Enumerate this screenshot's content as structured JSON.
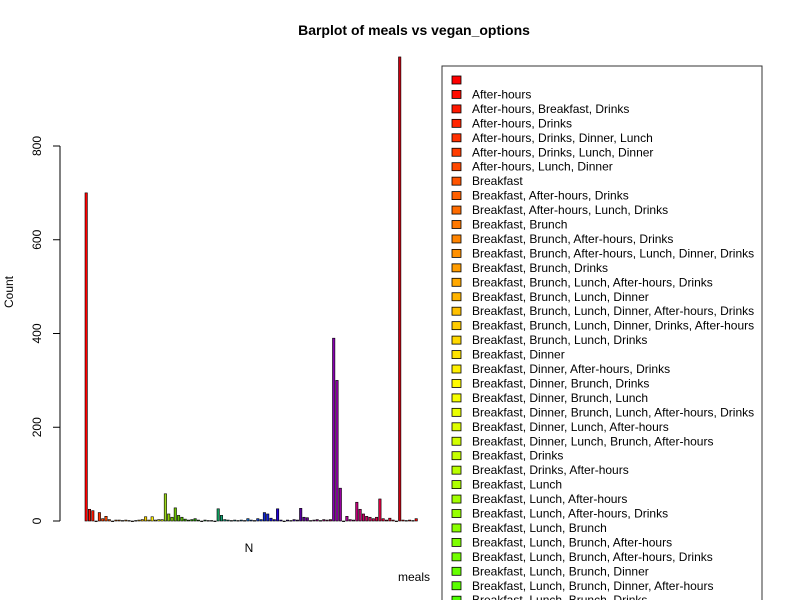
{
  "chart_data": {
    "type": "bar",
    "title": "Barplot of meals vs vegan_options",
    "xlabel": "meals",
    "ylabel": "Count",
    "ylim": [
      0,
      1000
    ],
    "yticks": [
      0,
      200,
      400,
      600,
      800
    ],
    "group_label": "N",
    "legend_position": "right",
    "legend": [
      {
        "label": "",
        "color": "#FF0000"
      },
      {
        "label": "After-hours",
        "color": "#FF0C00"
      },
      {
        "label": "After-hours, Breakfast, Drinks",
        "color": "#FF1800"
      },
      {
        "label": "After-hours, Drinks",
        "color": "#FF2400"
      },
      {
        "label": "After-hours, Drinks, Dinner, Lunch",
        "color": "#FF3000"
      },
      {
        "label": "After-hours, Drinks, Lunch, Dinner",
        "color": "#FF3C00"
      },
      {
        "label": "After-hours, Lunch, Dinner",
        "color": "#FF4800"
      },
      {
        "label": "Breakfast",
        "color": "#FF5400"
      },
      {
        "label": "Breakfast, After-hours, Drinks",
        "color": "#FF6000"
      },
      {
        "label": "Breakfast, After-hours, Lunch, Drinks",
        "color": "#FF6C00"
      },
      {
        "label": "Breakfast, Brunch",
        "color": "#FF7800"
      },
      {
        "label": "Breakfast, Brunch, After-hours, Drinks",
        "color": "#FF8400"
      },
      {
        "label": "Breakfast, Brunch, After-hours, Lunch, Dinner, Drinks",
        "color": "#FF9000"
      },
      {
        "label": "Breakfast, Brunch, Drinks",
        "color": "#FF9C00"
      },
      {
        "label": "Breakfast, Brunch, Lunch, After-hours, Drinks",
        "color": "#FFA800"
      },
      {
        "label": "Breakfast, Brunch, Lunch, Dinner",
        "color": "#FFB400"
      },
      {
        "label": "Breakfast, Brunch, Lunch, Dinner, After-hours, Drinks",
        "color": "#FFC000"
      },
      {
        "label": "Breakfast, Brunch, Lunch, Dinner, Drinks, After-hours",
        "color": "#FFCC00"
      },
      {
        "label": "Breakfast, Brunch, Lunch, Drinks",
        "color": "#FFD800"
      },
      {
        "label": "Breakfast, Dinner",
        "color": "#FFE400"
      },
      {
        "label": "Breakfast, Dinner, After-hours, Drinks",
        "color": "#FFF000"
      },
      {
        "label": "Breakfast, Dinner, Brunch, Drinks",
        "color": "#FFFC00"
      },
      {
        "label": "Breakfast, Dinner, Brunch, Lunch",
        "color": "#F6FF00"
      },
      {
        "label": "Breakfast, Dinner, Brunch, Lunch, After-hours, Drinks",
        "color": "#EAFF00"
      },
      {
        "label": "Breakfast, Dinner, Lunch, After-hours",
        "color": "#DEFF00"
      },
      {
        "label": "Breakfast, Dinner, Lunch, Brunch, After-hours",
        "color": "#D2FF00"
      },
      {
        "label": "Breakfast, Drinks",
        "color": "#C6FF00"
      },
      {
        "label": "Breakfast, Drinks, After-hours",
        "color": "#BAFF00"
      },
      {
        "label": "Breakfast, Lunch",
        "color": "#AEFF00"
      },
      {
        "label": "Breakfast, Lunch, After-hours",
        "color": "#A2FF00"
      },
      {
        "label": "Breakfast, Lunch, After-hours, Drinks",
        "color": "#96FF00"
      },
      {
        "label": "Breakfast, Lunch, Brunch",
        "color": "#8AFF00"
      },
      {
        "label": "Breakfast, Lunch, Brunch, After-hours",
        "color": "#7EFF00"
      },
      {
        "label": "Breakfast, Lunch, Brunch, After-hours, Drinks",
        "color": "#72FF00"
      },
      {
        "label": "Breakfast, Lunch, Brunch, Dinner",
        "color": "#66FF00"
      },
      {
        "label": "Breakfast, Lunch, Brunch, Dinner, After-hours",
        "color": "#5AFF00"
      },
      {
        "label": "Breakfast, Lunch, Brunch, Drinks",
        "color": "#4EFF00"
      }
    ],
    "series": [
      {
        "color": "#FF0000",
        "value": 700
      },
      {
        "color": "#FF0C00",
        "value": 25
      },
      {
        "color": "#FF1800",
        "value": 22
      },
      {
        "color": "#FF2400",
        "value": 0
      },
      {
        "color": "#FF3000",
        "value": 18
      },
      {
        "color": "#FF3C00",
        "value": 5
      },
      {
        "color": "#FF4800",
        "value": 10
      },
      {
        "color": "#FF5400",
        "value": 3
      },
      {
        "color": "#FF6000",
        "value": 0
      },
      {
        "color": "#FF6C00",
        "value": 2
      },
      {
        "color": "#FF7800",
        "value": 2
      },
      {
        "color": "#FF8400",
        "value": 1
      },
      {
        "color": "#FF9000",
        "value": 2
      },
      {
        "color": "#FF9C00",
        "value": 1
      },
      {
        "color": "#FFA800",
        "value": 0
      },
      {
        "color": "#FFB400",
        "value": 1
      },
      {
        "color": "#FFC000",
        "value": 2
      },
      {
        "color": "#FFCC00",
        "value": 3
      },
      {
        "color": "#FFD800",
        "value": 9
      },
      {
        "color": "#FFE400",
        "value": 2
      },
      {
        "color": "#FFF000",
        "value": 9
      },
      {
        "color": "#FFFC00",
        "value": 2
      },
      {
        "color": "#F6FF00",
        "value": 3
      },
      {
        "color": "#EAFF00",
        "value": 3
      },
      {
        "color": "#9CD81C",
        "value": 58
      },
      {
        "color": "#8FD200",
        "value": 15
      },
      {
        "color": "#7CCB00",
        "value": 8
      },
      {
        "color": "#6EC400",
        "value": 28
      },
      {
        "color": "#60BE00",
        "value": 12
      },
      {
        "color": "#52B700",
        "value": 8
      },
      {
        "color": "#44B000",
        "value": 4
      },
      {
        "color": "#38A800",
        "value": 2
      },
      {
        "color": "#2CA000",
        "value": 3
      },
      {
        "color": "#229900",
        "value": 5
      },
      {
        "color": "#1A9410",
        "value": 2
      },
      {
        "color": "#149020",
        "value": 0
      },
      {
        "color": "#10902E",
        "value": 2
      },
      {
        "color": "#0E903C",
        "value": 1
      },
      {
        "color": "#0C904A",
        "value": 1
      },
      {
        "color": "#0A9058",
        "value": 0
      },
      {
        "color": "#10A060",
        "value": 26
      },
      {
        "color": "#10A070",
        "value": 12
      },
      {
        "color": "#10A080",
        "value": 3
      },
      {
        "color": "#10A090",
        "value": 2
      },
      {
        "color": "#10A0A0",
        "value": 1
      },
      {
        "color": "#1094A8",
        "value": 2
      },
      {
        "color": "#1088B0",
        "value": 1
      },
      {
        "color": "#107CB8",
        "value": 2
      },
      {
        "color": "#1070C0",
        "value": 1
      },
      {
        "color": "#1064C4",
        "value": 5
      },
      {
        "color": "#1058C8",
        "value": 2
      },
      {
        "color": "#104CCC",
        "value": 1
      },
      {
        "color": "#1040D0",
        "value": 5
      },
      {
        "color": "#1034D4",
        "value": 3
      },
      {
        "color": "#1028D8",
        "value": 18
      },
      {
        "color": "#101CDC",
        "value": 15
      },
      {
        "color": "#1010E0",
        "value": 6
      },
      {
        "color": "#1800E0",
        "value": 3
      },
      {
        "color": "#2000D8",
        "value": 26
      },
      {
        "color": "#2800D0",
        "value": 2
      },
      {
        "color": "#3000C8",
        "value": 0
      },
      {
        "color": "#3800C0",
        "value": 2
      },
      {
        "color": "#4000B8",
        "value": 1
      },
      {
        "color": "#4800B0",
        "value": 3
      },
      {
        "color": "#5000A8",
        "value": 2
      },
      {
        "color": "#5800A0",
        "value": 27
      },
      {
        "color": "#600098",
        "value": 8
      },
      {
        "color": "#680090",
        "value": 7
      },
      {
        "color": "#700088",
        "value": 1
      },
      {
        "color": "#780080",
        "value": 2
      },
      {
        "color": "#800078",
        "value": 3
      },
      {
        "color": "#880070",
        "value": 1
      },
      {
        "color": "#900068",
        "value": 3
      },
      {
        "color": "#980060",
        "value": 2
      },
      {
        "color": "#A00058",
        "value": 3
      },
      {
        "color": "#8800B0",
        "value": 390
      },
      {
        "color": "#9000A8",
        "value": 300
      },
      {
        "color": "#9800A0",
        "value": 70
      },
      {
        "color": "#A00098",
        "value": 0
      },
      {
        "color": "#A80090",
        "value": 10
      },
      {
        "color": "#B00088",
        "value": 3
      },
      {
        "color": "#B80080",
        "value": 2
      },
      {
        "color": "#C00078",
        "value": 40
      },
      {
        "color": "#C40070",
        "value": 25
      },
      {
        "color": "#C80068",
        "value": 15
      },
      {
        "color": "#CC0060",
        "value": 10
      },
      {
        "color": "#D00058",
        "value": 8
      },
      {
        "color": "#D40050",
        "value": 5
      },
      {
        "color": "#D80048",
        "value": 8
      },
      {
        "color": "#DC0040",
        "value": 47
      },
      {
        "color": "#E00038",
        "value": 5
      },
      {
        "color": "#E40030",
        "value": 2
      },
      {
        "color": "#E80028",
        "value": 6
      },
      {
        "color": "#EC0020",
        "value": 2
      },
      {
        "color": "#F00018",
        "value": 0
      },
      {
        "color": "#CC0010",
        "value": 990
      },
      {
        "color": "#F80008",
        "value": 2
      },
      {
        "color": "#FA0006",
        "value": 1
      },
      {
        "color": "#FC0004",
        "value": 2
      },
      {
        "color": "#FD0002",
        "value": 1
      },
      {
        "color": "#FE0001",
        "value": 5
      }
    ]
  }
}
